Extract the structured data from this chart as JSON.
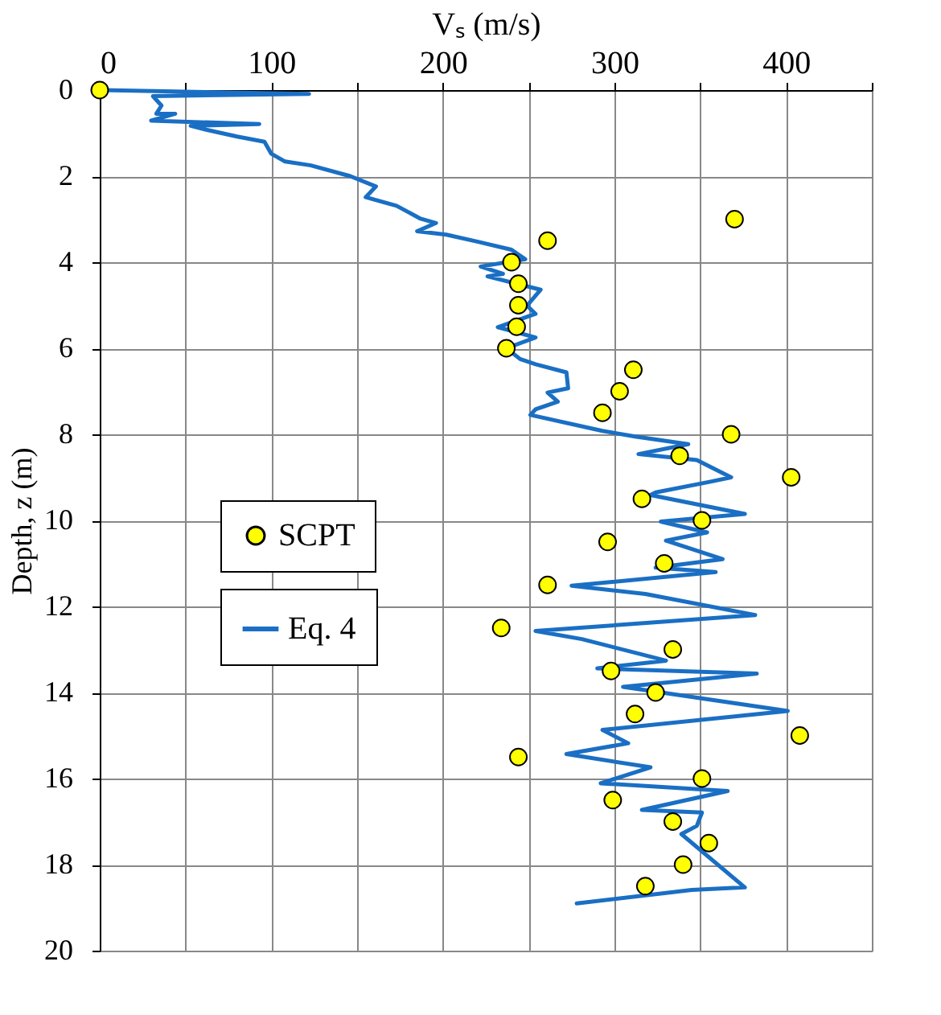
{
  "chart_data": {
    "type": "scatter",
    "xlabel": "Vₛ (m/s)",
    "ylabel": "Depth, z (m)",
    "xlim": [
      0,
      450
    ],
    "xticks": [
      0,
      {
        "value": 50,
        "label": null
      },
      100,
      {
        "value": 150,
        "label": null
      },
      200,
      {
        "value": 250,
        "label": null
      },
      300,
      {
        "value": 350,
        "label": null
      },
      400,
      {
        "value": 450,
        "label": null
      }
    ],
    "ylim": [
      20,
      0
    ],
    "yticks": [
      0,
      2,
      4,
      6,
      8,
      10,
      12,
      14,
      16,
      18,
      20
    ],
    "grid": true,
    "legend": "left",
    "series": [
      {
        "name": "SCPT",
        "type": "scatter",
        "marker": "circle",
        "color": "#ffff00",
        "x": [
          0,
          370,
          261,
          240,
          244,
          244,
          243,
          237,
          311,
          303,
          293,
          368,
          338,
          403,
          316,
          351,
          296,
          329,
          261,
          234,
          334,
          298,
          324,
          312,
          408,
          244,
          351,
          299,
          334,
          355,
          340,
          318
        ],
        "values": [
          0,
          3,
          3.5,
          4,
          4.5,
          5,
          5.5,
          6,
          6.5,
          7,
          7.5,
          8,
          8.5,
          9,
          9.5,
          10,
          10.5,
          11,
          11.5,
          12.5,
          13,
          13.5,
          14,
          14.5,
          15,
          15.5,
          16,
          16.5,
          17,
          17.5,
          18,
          18.5
        ]
      },
      {
        "name": "Eq. 4",
        "type": "line",
        "line_style": "solid",
        "color": "#1a6fc4",
        "x": [
          1,
          122,
          31,
          36,
          33,
          44,
          30,
          93,
          53,
          62,
          80,
          96,
          100,
          108,
          123,
          146,
          161,
          155,
          173,
          187,
          196,
          185,
          202,
          220,
          240,
          248,
          222,
          235,
          226,
          257,
          249,
          254,
          232,
          254,
          237,
          245,
          254,
          272,
          273,
          261,
          267,
          254,
          251,
          293,
          312,
          343,
          314,
          348,
          368,
          356,
          324,
          321,
          376,
          327,
          354,
          330,
          363,
          324,
          359,
          275,
          318,
          382,
          254,
          281,
          330,
          290,
          383,
          305,
          401,
          293,
          308,
          272,
          321,
          292,
          366,
          316,
          351,
          348,
          339,
          376,
          345,
          278
        ],
        "values": [
          0,
          0.09,
          0.14,
          0.36,
          0.55,
          0.55,
          0.71,
          0.79,
          0.83,
          0.92,
          1.08,
          1.2,
          1.48,
          1.66,
          1.75,
          2.0,
          2.24,
          2.49,
          2.69,
          2.99,
          3.09,
          3.28,
          3.36,
          3.52,
          3.71,
          3.93,
          4.1,
          4.27,
          4.33,
          4.64,
          5.01,
          5.2,
          5.51,
          5.75,
          6.0,
          6.25,
          6.37,
          6.56,
          6.93,
          7.03,
          7.24,
          7.42,
          7.55,
          7.92,
          8.05,
          8.23,
          8.46,
          8.6,
          9.0,
          9.1,
          9.35,
          9.41,
          9.85,
          10.03,
          10.28,
          10.47,
          10.9,
          11.1,
          11.2,
          11.52,
          11.71,
          12.2,
          12.57,
          12.76,
          13.26,
          13.44,
          13.56,
          13.87,
          14.43,
          14.87,
          15.18,
          15.43,
          15.74,
          16.11,
          16.29,
          16.73,
          16.79,
          17.1,
          17.29,
          18.53,
          18.59,
          18.9
        ]
      }
    ]
  }
}
